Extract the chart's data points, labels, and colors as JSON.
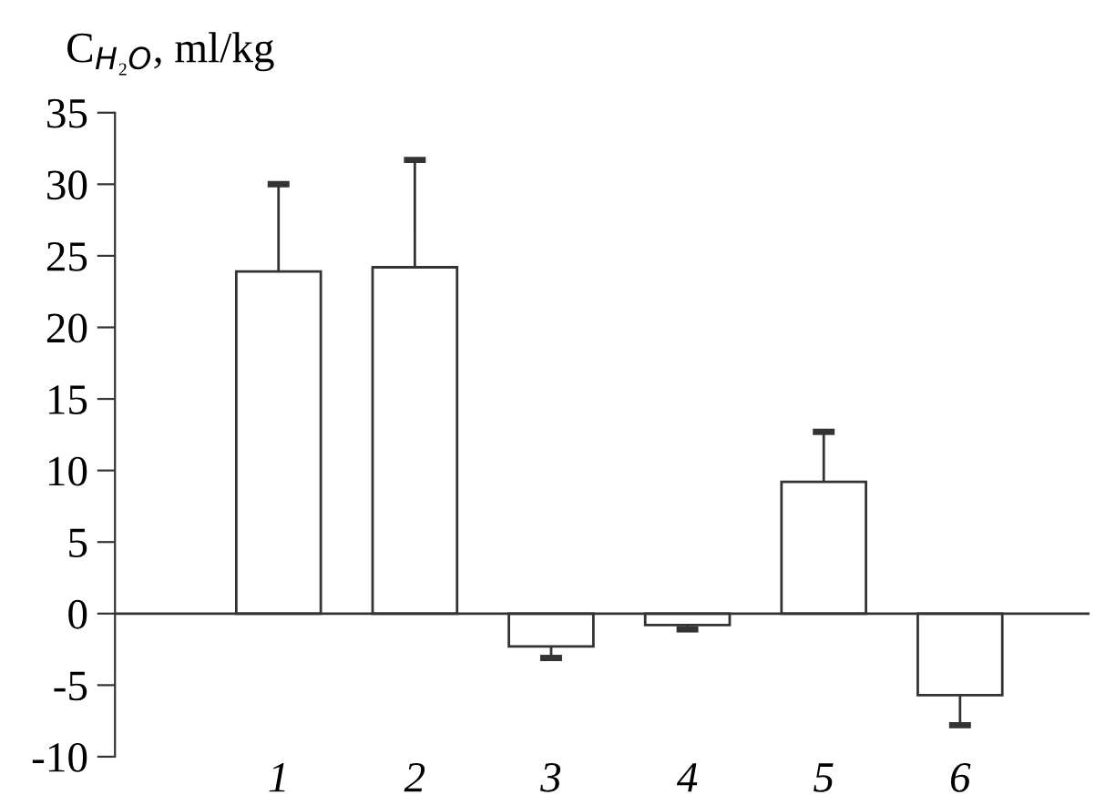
{
  "chart_data": {
    "type": "bar",
    "ylabel": "C$_{H₂O}$, ml/kg",
    "categories": [
      "1",
      "2",
      "3",
      "4",
      "5",
      "6"
    ],
    "values": [
      23.9,
      24.2,
      -2.3,
      -0.8,
      9.2,
      -5.7
    ],
    "errors": [
      [
        23.9,
        30.0
      ],
      [
        24.2,
        31.7
      ],
      [
        -3.1,
        -2.3
      ],
      [
        -1.1,
        -0.8
      ],
      [
        9.2,
        12.7
      ],
      [
        -7.8,
        -5.7
      ]
    ],
    "color": "#ffffff",
    "ylim": [
      -10,
      35
    ],
    "yticks": [
      -10,
      -5,
      0,
      5,
      10,
      15,
      20,
      25,
      30,
      35
    ],
    "ref_lines": [
      {
        "axis": "y",
        "value": 0,
        "color": "#333333"
      }
    ],
    "grid": false,
    "legend": false
  }
}
